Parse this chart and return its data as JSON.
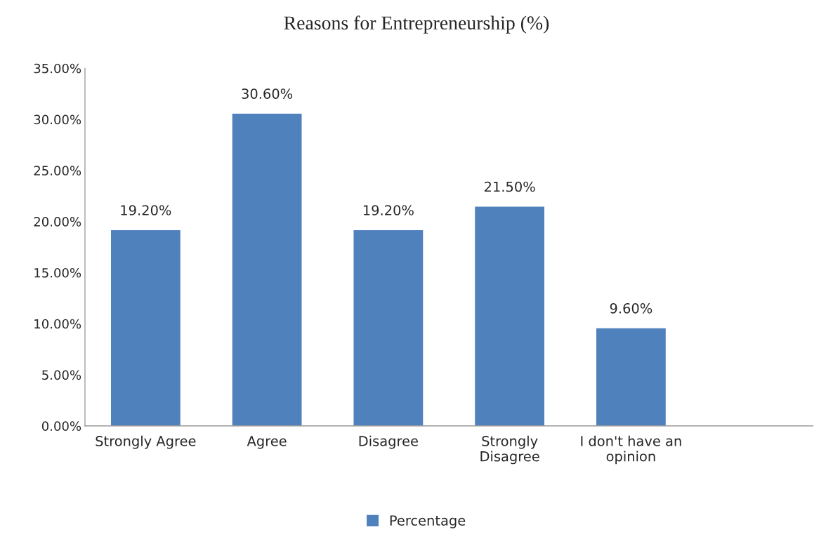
{
  "chart_data": {
    "type": "bar",
    "title": "Reasons for Entrepreneurship (%)",
    "categories": [
      "Strongly Agree",
      "Agree",
      "Disagree",
      "Strongly\nDisagree",
      "I don't have an\nopinion",
      null
    ],
    "series": [
      {
        "name": "Percentage",
        "color": "#4f81bd",
        "values": [
          19.2,
          30.6,
          19.2,
          21.5,
          9.6,
          null
        ],
        "value_labels": [
          "19.20%",
          "30.60%",
          "19.20%",
          "21.50%",
          "9.60%",
          null
        ]
      }
    ],
    "ylim": [
      0,
      35
    ],
    "yticks": [
      {
        "value": 0,
        "label": "0.00%"
      },
      {
        "value": 5,
        "label": "5.00%"
      },
      {
        "value": 10,
        "label": "10.00%"
      },
      {
        "value": 15,
        "label": "15.00%"
      },
      {
        "value": 20,
        "label": "20.00%"
      },
      {
        "value": 25,
        "label": "25.00%"
      },
      {
        "value": 30,
        "label": "30.00%"
      },
      {
        "value": 35,
        "label": "35.00%"
      }
    ],
    "grid": false,
    "legend": "bottom"
  }
}
